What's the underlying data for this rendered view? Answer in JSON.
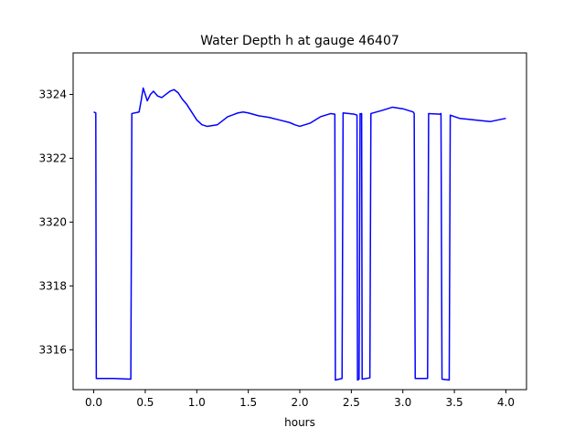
{
  "chart_data": {
    "type": "line",
    "title": "Water Depth h at gauge 46407",
    "xlabel": "hours",
    "ylabel": "",
    "xlim": [
      -0.2,
      4.2
    ],
    "ylim": [
      3314.75,
      3325.3
    ],
    "xticks": [
      0.0,
      0.5,
      1.0,
      1.5,
      2.0,
      2.5,
      3.0,
      3.5,
      4.0
    ],
    "xtick_labels": [
      "0.0",
      "0.5",
      "1.0",
      "1.5",
      "2.0",
      "2.5",
      "3.0",
      "3.5",
      "4.0"
    ],
    "yticks": [
      3316,
      3318,
      3320,
      3322,
      3324
    ],
    "ytick_labels": [
      "3316",
      "3318",
      "3320",
      "3322",
      "3324"
    ],
    "grid": false,
    "series": [
      {
        "color": "#0000ff",
        "x": [
          0.0,
          0.02,
          0.025,
          0.2,
          0.36,
          0.37,
          0.44,
          0.46,
          0.48,
          0.5,
          0.52,
          0.55,
          0.58,
          0.62,
          0.66,
          0.7,
          0.74,
          0.78,
          0.82,
          0.86,
          0.9,
          0.95,
          1.0,
          1.05,
          1.1,
          1.2,
          1.3,
          1.4,
          1.45,
          1.5,
          1.6,
          1.7,
          1.8,
          1.9,
          1.95,
          2.0,
          2.1,
          2.2,
          2.3,
          2.34,
          2.345,
          2.41,
          2.42,
          2.53,
          2.555,
          2.56,
          2.575,
          2.585,
          2.59,
          2.6,
          2.605,
          2.68,
          2.69,
          2.8,
          2.9,
          3.0,
          3.1,
          3.11,
          3.12,
          3.24,
          3.25,
          3.36,
          3.37,
          3.38,
          3.45,
          3.46,
          3.55,
          3.7,
          3.85,
          4.0
        ],
        "y": [
          3323.45,
          3323.42,
          3315.1,
          3315.1,
          3315.08,
          3323.4,
          3323.45,
          3323.8,
          3324.2,
          3324.0,
          3323.8,
          3324.0,
          3324.1,
          3323.95,
          3323.9,
          3324.0,
          3324.1,
          3324.15,
          3324.05,
          3323.85,
          3323.7,
          3323.45,
          3323.2,
          3323.05,
          3323.0,
          3323.05,
          3323.3,
          3323.42,
          3323.45,
          3323.42,
          3323.33,
          3323.28,
          3323.2,
          3323.12,
          3323.05,
          3323.0,
          3323.1,
          3323.3,
          3323.4,
          3323.38,
          3315.05,
          3315.1,
          3323.42,
          3323.38,
          3323.35,
          3315.05,
          3315.08,
          3323.4,
          3323.38,
          3323.4,
          3315.08,
          3315.12,
          3323.4,
          3323.5,
          3323.6,
          3323.55,
          3323.45,
          3323.4,
          3315.1,
          3315.1,
          3323.4,
          3323.38,
          3323.4,
          3315.08,
          3315.05,
          3323.35,
          3323.25,
          3323.2,
          3323.15,
          3323.25
        ]
      }
    ]
  }
}
